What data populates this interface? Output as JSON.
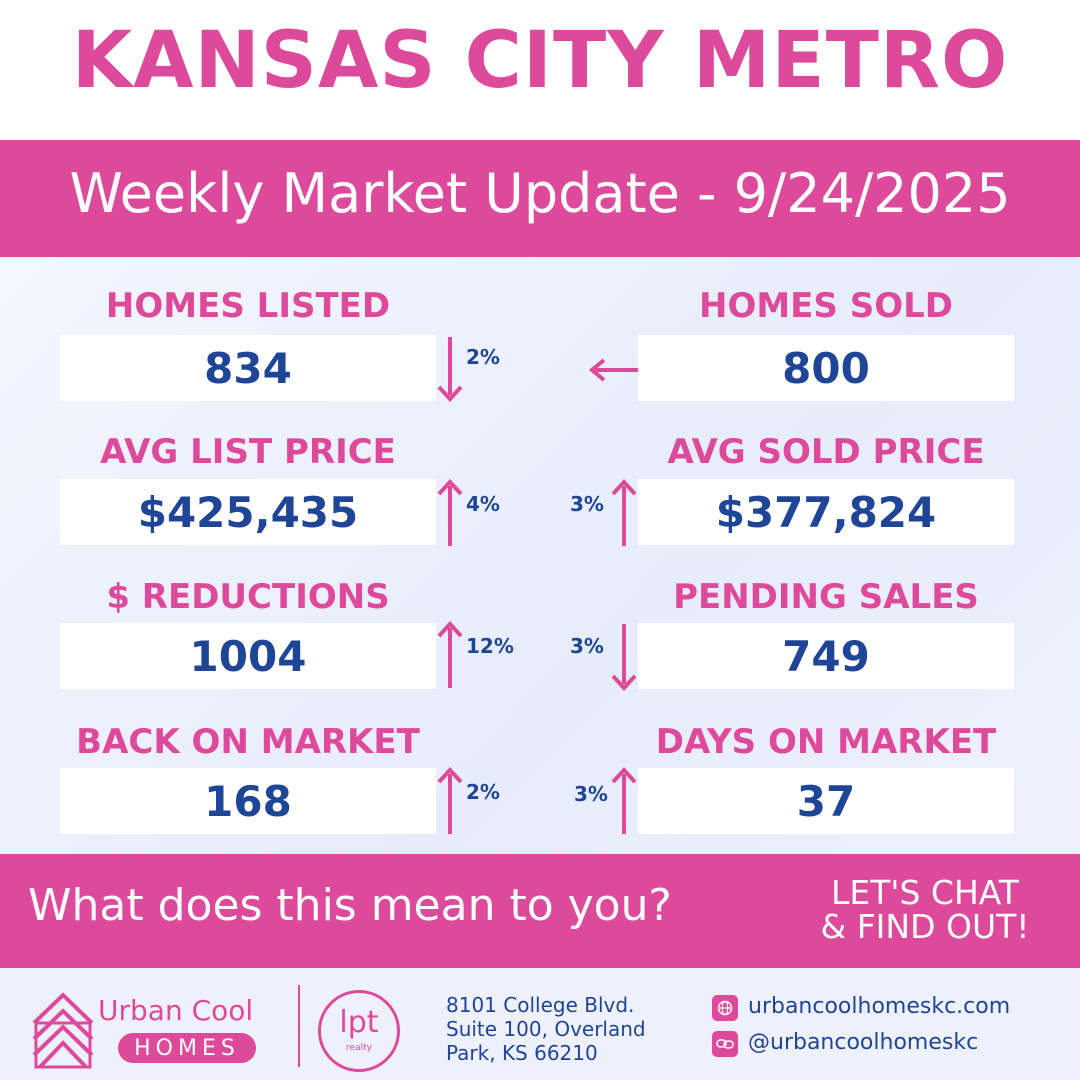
{
  "header": {
    "title": "KANSAS CITY METRO",
    "subtitle": "Weekly Market Update - 9/24/2025"
  },
  "stats": {
    "homes_listed": {
      "label": "HOMES LISTED",
      "value": "834",
      "change": "2%",
      "direction": "down"
    },
    "homes_sold": {
      "label": "HOMES SOLD",
      "value": "800",
      "change": "",
      "direction": "left"
    },
    "avg_list_price": {
      "label": "AVG LIST PRICE",
      "value": "$425,435",
      "change": "4%",
      "direction": "up"
    },
    "avg_sold_price": {
      "label": "AVG SOLD PRICE",
      "value": "$377,824",
      "change": "3%",
      "direction": "up"
    },
    "reductions": {
      "label": "$ REDUCTIONS",
      "value": "1004",
      "change": "12%",
      "direction": "up"
    },
    "pending_sales": {
      "label": "PENDING SALES",
      "value": "749",
      "change": "3%",
      "direction": "down"
    },
    "back_on_market": {
      "label": "BACK ON MARKET",
      "value": "168",
      "change": "2%",
      "direction": "up"
    },
    "days_on_market": {
      "label": "DAYS ON MARKET",
      "value": "37",
      "change": "3%",
      "direction": "up"
    }
  },
  "cta": {
    "question": "What does this mean to you?",
    "chat_line1": "LET'S CHAT",
    "chat_line2": "& FIND OUT!"
  },
  "footer": {
    "brand_line1": "Urban Cool",
    "brand_line2": "HOMES",
    "partner_logo": "lpt",
    "partner_sub": "realty",
    "address_line1": "8101 College Blvd.",
    "address_line2": "Suite 100, Overland",
    "address_line3": "Park, KS 66210",
    "website": "urbancoolhomeskc.com",
    "social": "@urbancoolhomeskc"
  },
  "colors": {
    "pink": "#dd4a9b",
    "navy": "#1f4596",
    "white": "#ffffff",
    "background": "#eef1fb"
  },
  "icons": [
    "arrow-down-icon",
    "arrow-up-icon",
    "arrow-left-icon",
    "house-logo-icon",
    "globe-icon",
    "link-icon"
  ]
}
